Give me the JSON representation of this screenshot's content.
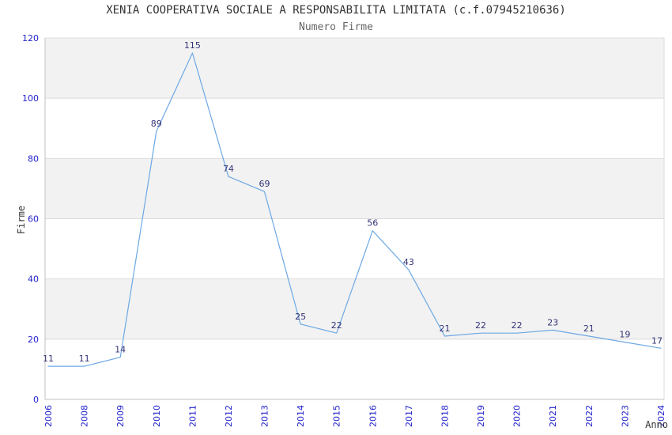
{
  "chart_data": {
    "type": "line",
    "title": "XENIA COOPERATIVA SOCIALE A RESPONSABILITA LIMITATA (c.f.07945210636)",
    "subtitle": "Numero Firme",
    "xlabel": "Anno",
    "ylabel": "Firme",
    "categories": [
      "2006",
      "2008",
      "2009",
      "2010",
      "2011",
      "2012",
      "2013",
      "2014",
      "2015",
      "2016",
      "2017",
      "2018",
      "2019",
      "2020",
      "2021",
      "2022",
      "2023",
      "2024"
    ],
    "values": [
      11,
      11,
      14,
      89,
      115,
      74,
      69,
      25,
      22,
      56,
      43,
      21,
      22,
      22,
      23,
      21,
      19,
      17
    ],
    "ylim": [
      0,
      120
    ],
    "ytick_step": 20,
    "yticks": [
      0,
      20,
      40,
      60,
      80,
      100,
      120
    ],
    "grid": true,
    "legend": "none",
    "band_fill": "alternating horizontal bands, gray on odd 20-unit intervals starting from 20-40",
    "colors": {
      "line": "#6da8e4",
      "tick_label": "#2222cc",
      "data_label": "#333377",
      "band_gray": "#f2f2f2",
      "band_white": "#ffffff",
      "grid_line": "#dcdcdc",
      "axis_line": "#c0c0c0",
      "title": "#333333",
      "subtitle": "#666666"
    }
  }
}
